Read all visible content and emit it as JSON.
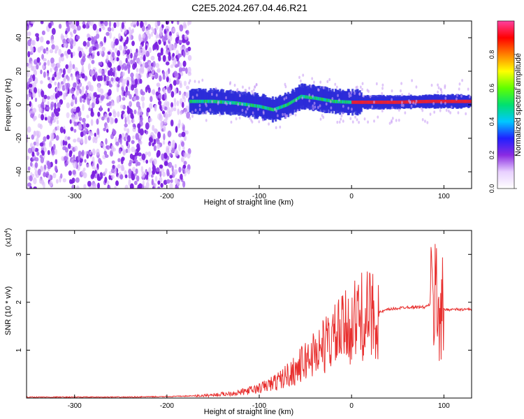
{
  "title": "C2E5.2024.267.04.46.R21",
  "chart_data": [
    {
      "type": "heatmap",
      "xlabel": "Height of straight line (km)",
      "ylabel": "Frequency (Hz)",
      "xlim": [
        -352,
        130
      ],
      "ylim": [
        -50,
        50
      ],
      "xticks": [
        -300,
        -200,
        -100,
        0,
        100
      ],
      "yticks": [
        -40,
        -20,
        0,
        20,
        40
      ],
      "colorbar": {
        "label": "Normalized spectral amplitude",
        "range": [
          0,
          1
        ],
        "ticks": [
          0.0,
          0.2,
          0.4,
          0.6,
          0.8
        ],
        "tick_labels": [
          "0.0",
          "0.2",
          "0.4",
          "0.6",
          "0.8"
        ],
        "colors": [
          "#ffffff",
          "#e8d0ff",
          "#8a2be2",
          "#2020ff",
          "#00c8ff",
          "#00e070",
          "#60ff00",
          "#ffff00",
          "#ff8000",
          "#ff0000",
          "#ff40a0"
        ]
      },
      "noise_region_x": [
        -352,
        -175
      ],
      "signal_band": [
        [
          -175,
          2
        ],
        [
          -150,
          2
        ],
        [
          -125,
          1
        ],
        [
          -100,
          -1
        ],
        [
          -85,
          -3
        ],
        [
          -70,
          0
        ],
        [
          -55,
          5
        ],
        [
          -40,
          4
        ],
        [
          -30,
          3
        ],
        [
          -20,
          2
        ],
        [
          0,
          1.5
        ],
        [
          50,
          1.5
        ],
        [
          85,
          2
        ],
        [
          95,
          2
        ],
        [
          130,
          2
        ]
      ]
    },
    {
      "type": "line",
      "xlabel": "Height of straight line (km)",
      "ylabel": "SNR (10 * v/v)",
      "yscale_label": "(x10",
      "yscale_exponent": "4",
      "ylabel_power": ")",
      "xlim": [
        -352,
        130
      ],
      "ylim": [
        0,
        3.5
      ],
      "xticks": [
        -300,
        -200,
        -100,
        0,
        100
      ],
      "yticks": [
        1,
        2,
        3
      ],
      "series": [
        {
          "color": "#e8302f",
          "x": [
            -352,
            -250,
            -200,
            -160,
            -140,
            -120,
            -100,
            -80,
            -60,
            -40,
            -20,
            0,
            10,
            20,
            40,
            60,
            80,
            88,
            92,
            95,
            98,
            100,
            110,
            130
          ],
          "y": [
            0.02,
            0.02,
            0.03,
            0.05,
            0.08,
            0.12,
            0.2,
            0.35,
            0.6,
            0.95,
            1.25,
            1.55,
            1.7,
            1.72,
            1.85,
            1.9,
            1.9,
            2.0,
            2.2,
            1.9,
            1.85,
            1.85,
            1.85,
            1.85
          ]
        }
      ]
    }
  ]
}
